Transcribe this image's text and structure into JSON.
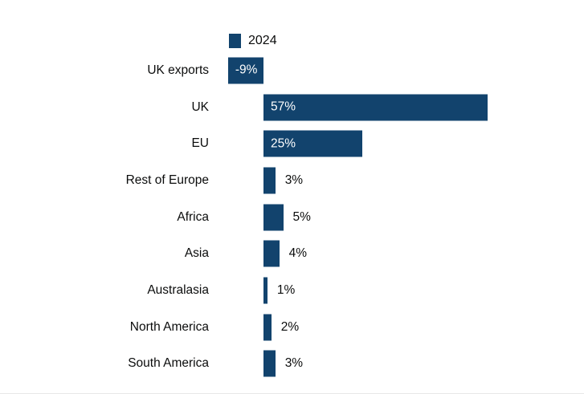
{
  "chart_data": {
    "type": "bar",
    "orientation": "horizontal",
    "title": "",
    "legend": "2024",
    "legend_position": "top",
    "categories": [
      "UK exports",
      "UK",
      "EU",
      "Rest of Europe",
      "Africa",
      "Asia",
      "Australasia",
      "North America",
      "South America"
    ],
    "values": [
      -9,
      57,
      25,
      3,
      5,
      4,
      1,
      2,
      3
    ],
    "value_labels": [
      "-9%",
      "57%",
      "25%",
      "3%",
      "5%",
      "4%",
      "1%",
      "2%",
      "3%"
    ],
    "xlim": [
      -9,
      60
    ],
    "grid": false,
    "bar_color": "#12436d",
    "value_label_inside_color": "#ffffff",
    "value_label_outside_color": "#0b0c0c"
  }
}
